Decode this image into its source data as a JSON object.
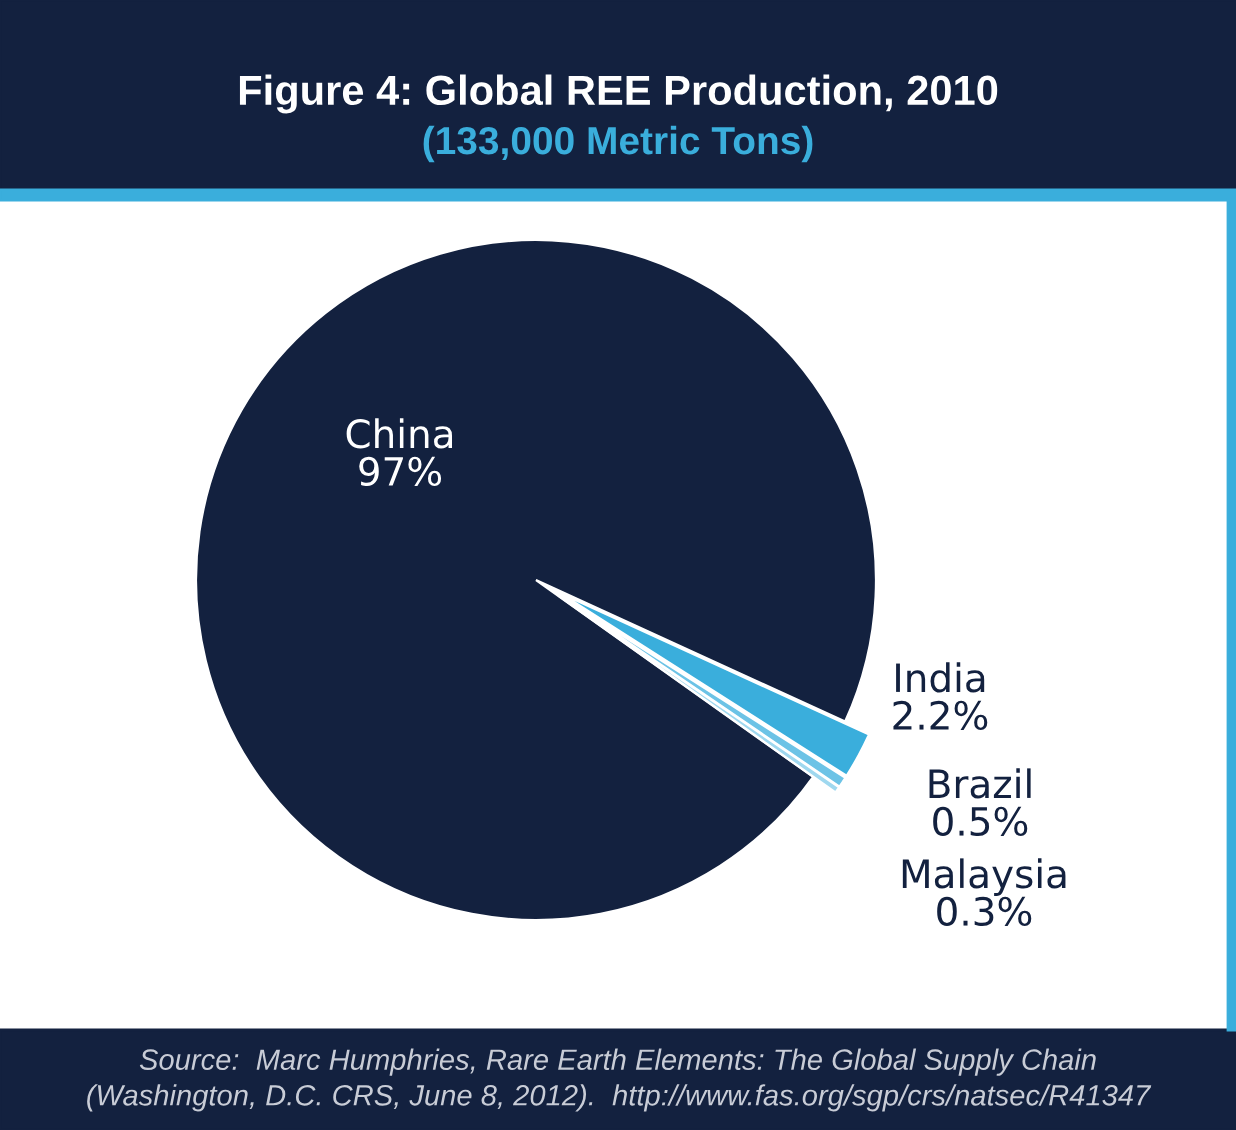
{
  "chart_data": {
    "type": "pie",
    "title": "Figure 4: Global REE Production, 2010",
    "subtitle": "(133,000 Metric Tons)",
    "categories": [
      "China",
      "India",
      "Brazil",
      "Malaysia"
    ],
    "values": [
      97,
      2.2,
      0.5,
      0.3
    ],
    "colors": [
      "#13213f",
      "#3aaedc",
      "#6cc3e6",
      "#9fd8ef"
    ],
    "value_labels": [
      "97%",
      "2.2%",
      "0.5%",
      "0.3%"
    ],
    "annotations": [
      "Source:  Marc Humphries, Rare Earth Elements: The Global Supply Chain\n(Washington, D.C. CRS, June 8, 2012).  http://www.fas.org/sgp/crs/natsec/R41347"
    ]
  }
}
